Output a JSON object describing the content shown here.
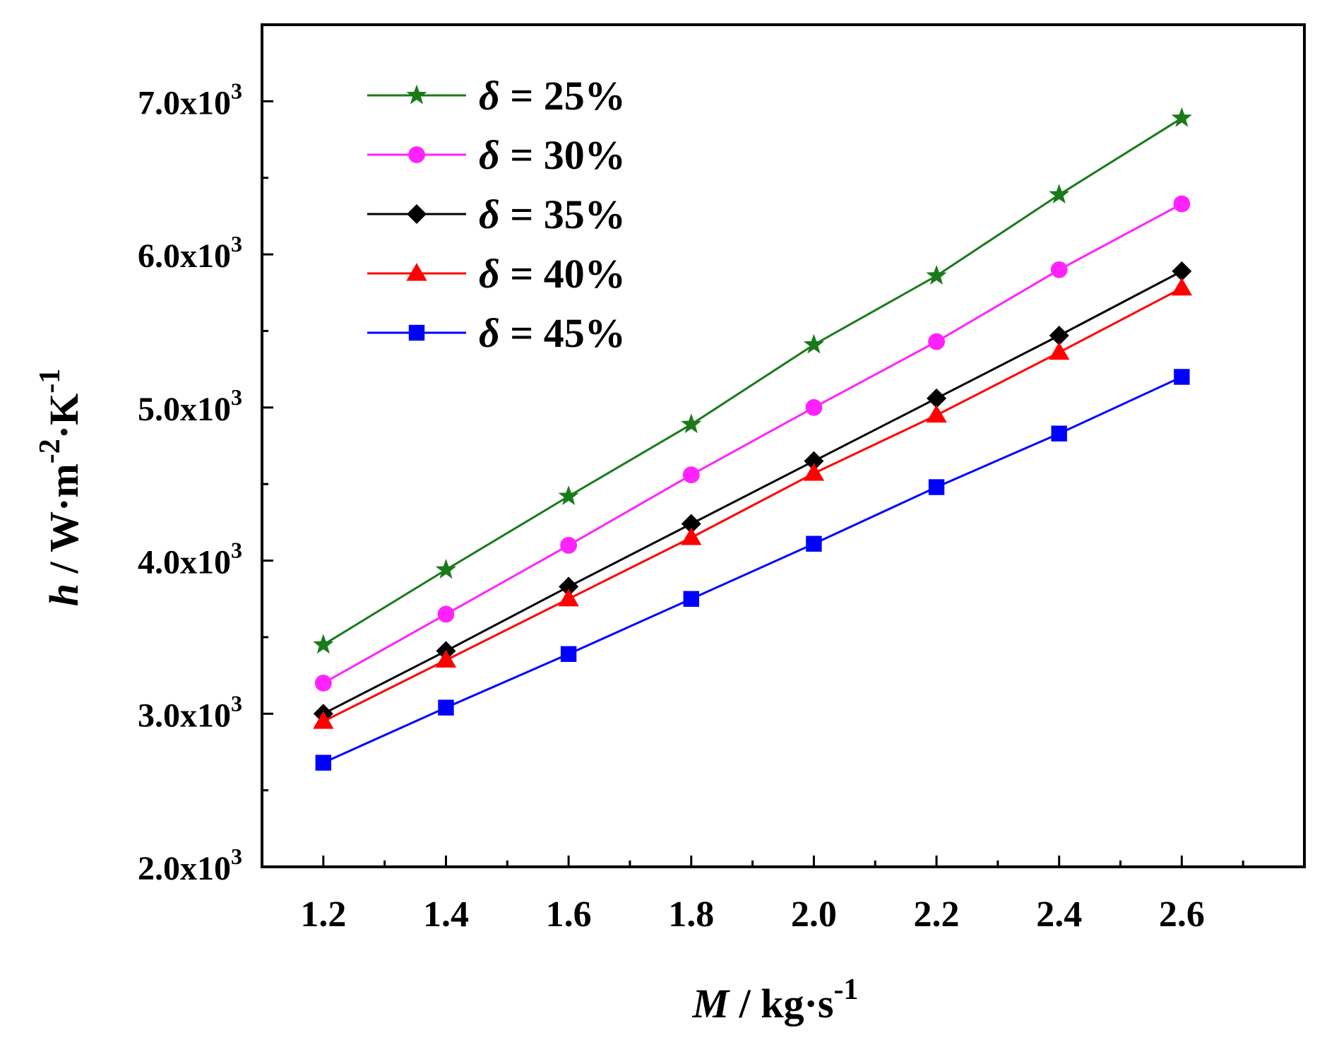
{
  "chart_data": {
    "type": "line",
    "title": "",
    "x": [
      1.2,
      1.4,
      1.6,
      1.8,
      2.0,
      2.2,
      2.4,
      2.6
    ],
    "x_tick_labels": [
      "1.2",
      "1.4",
      "1.6",
      "1.8",
      "2.0",
      "2.2",
      "2.4",
      "2.6"
    ],
    "xlim": [
      1.1,
      2.8
    ],
    "ylim": [
      2000,
      7500
    ],
    "y_ticks": [
      2000,
      3000,
      4000,
      5000,
      6000,
      7000
    ],
    "y_tick_labels": [
      {
        "mantissa": "2.0x10",
        "exp": "3"
      },
      {
        "mantissa": "3.0x10",
        "exp": "3"
      },
      {
        "mantissa": "4.0x10",
        "exp": "3"
      },
      {
        "mantissa": "5.0x10",
        "exp": "3"
      },
      {
        "mantissa": "6.0x10",
        "exp": "3"
      },
      {
        "mantissa": "7.0x10",
        "exp": "3"
      }
    ],
    "xlabel": {
      "var": "M",
      "unit": " / kg·s",
      "exp": "-1"
    },
    "ylabel": {
      "var": "h",
      "unit": " / W·m",
      "exp1": "-2",
      "mid": "·K",
      "exp2": "-1"
    },
    "legend_position": "top-left",
    "series": [
      {
        "name": "δ = 25%",
        "symbol": "δ",
        "label": " = 25%",
        "marker": "star",
        "color": "#1a7a1a",
        "values": [
          3450,
          3940,
          4420,
          4890,
          5410,
          5860,
          6390,
          6890
        ]
      },
      {
        "name": "δ = 30%",
        "symbol": "δ",
        "label": " = 30%",
        "marker": "circle",
        "color": "#ff22ff",
        "values": [
          3200,
          3650,
          4100,
          4560,
          5000,
          5430,
          5900,
          6330
        ]
      },
      {
        "name": "δ = 35%",
        "symbol": "δ",
        "label": " = 35%",
        "marker": "diamond",
        "color": "#000000",
        "values": [
          3000,
          3410,
          3830,
          4240,
          4650,
          5060,
          5470,
          5890
        ]
      },
      {
        "name": "δ = 40%",
        "symbol": "δ",
        "label": " = 40%",
        "marker": "triangle",
        "color": "#ff0000",
        "values": [
          2950,
          3350,
          3750,
          4150,
          4570,
          4950,
          5360,
          5780
        ]
      },
      {
        "name": "δ = 45%",
        "symbol": "δ",
        "label": " = 45%",
        "marker": "square",
        "color": "#0000ff",
        "values": [
          2680,
          3040,
          3390,
          3750,
          4110,
          4480,
          4830,
          5200
        ]
      }
    ]
  }
}
